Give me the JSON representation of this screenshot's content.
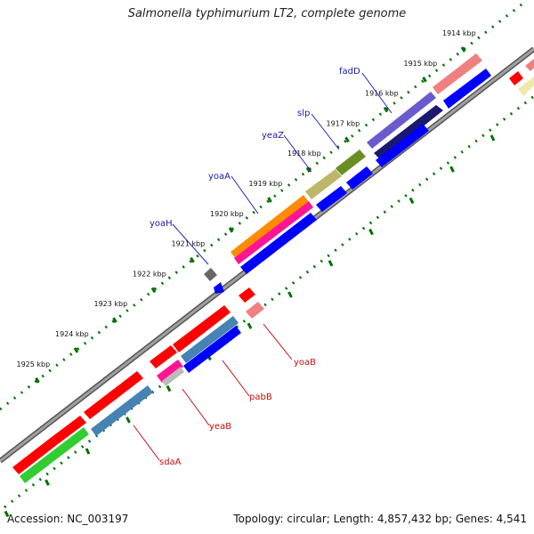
{
  "title": "Salmonella typhimurium LT2, complete genome",
  "accession": "Accession: NC_003197",
  "summary": "Topology: circular; Length: 4,857,432 bp; Genes: 4,541",
  "ticks": [
    "1914 kbp",
    "1915 kbp",
    "1916 kbp",
    "1917 kbp",
    "1918 kbp",
    "1919 kbp",
    "1920 kbp",
    "1921 kbp",
    "1922 kbp",
    "1923 kbp",
    "1924 kbp",
    "1925 kbp"
  ],
  "forward_genes": [
    {
      "name": "fadD",
      "color": "#6a5acd"
    },
    {
      "name": "slp",
      "color": "#6b8e23"
    },
    {
      "name": "yeaZ",
      "color": "#bdb76b"
    },
    {
      "name": "yoaA",
      "color": "#ff8c00"
    },
    {
      "name": "yoaH",
      "color": "#666666"
    }
  ],
  "reverse_genes": [
    {
      "name": "yoaB",
      "color": "#f08080"
    },
    {
      "name": "pabB",
      "color": "#ff1493"
    },
    {
      "name": "yeaB",
      "color": "#ff0000"
    },
    {
      "name": "sdaA",
      "color": "#4682b4"
    }
  ],
  "colors": {
    "backbone": "#888888",
    "forward_ticks": "#007000",
    "cds": "#0000ff",
    "rna": "#ff0000",
    "other": "#32cd32"
  }
}
